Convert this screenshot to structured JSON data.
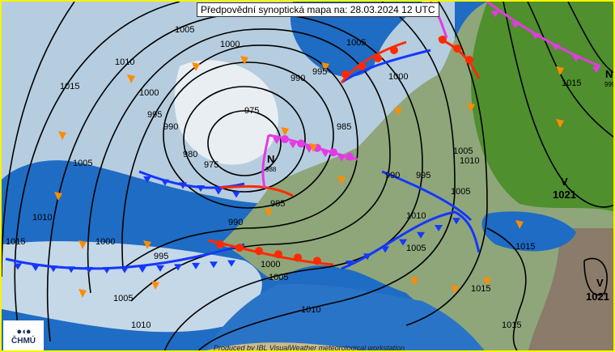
{
  "title": "Předpovědní synoptická mapa na: 28.03.2024 12 UTC",
  "footer": "Produced by IBL VisualWeather meteorological workstation",
  "logo": {
    "text": "ČHMÚ",
    "symbol": "●◖●"
  },
  "pressure_centers": [
    {
      "type": "N",
      "value": "988"
    },
    {
      "type": "N",
      "value": "999"
    },
    {
      "type": "V",
      "value": "1021"
    },
    {
      "type": "V",
      "value": "1021"
    }
  ],
  "isobar_labels": [
    "1005",
    "1000",
    "995",
    "990",
    "985",
    "975",
    "980",
    "975",
    "985",
    "990",
    "990",
    "995",
    "1000",
    "1005",
    "1010",
    "1015",
    "1000",
    "995",
    "990",
    "1005",
    "1010",
    "1015",
    "1000",
    "995",
    "1005",
    "1010",
    "1010",
    "1005",
    "1000",
    "1005",
    "1010",
    "1005",
    "1010",
    "1015",
    "1015",
    "1015",
    "1015",
    "1005"
  ],
  "colors": {
    "sea": "#1f6cc4",
    "land": "#5f9e3a",
    "cloud": "#dfe9ef",
    "isobar": "#000000",
    "cold_front": "#1537ff",
    "warm_front": "#ff2a00",
    "occluded_front": "#e43ae4",
    "wind_arrow": "#ff8c00",
    "border": "#f5f500"
  }
}
